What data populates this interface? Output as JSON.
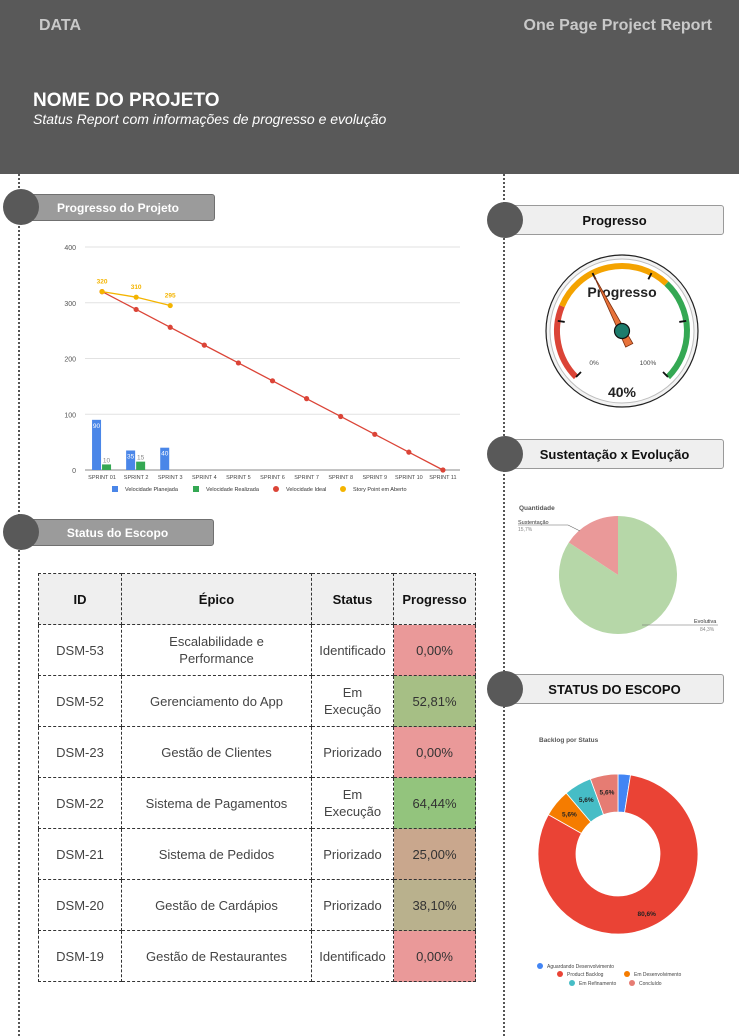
{
  "header": {
    "left_label": "DATA",
    "right_label": "One Page Project Report",
    "title": "NOME DO PROJETO",
    "subtitle": "Status Report com informações de progresso e evolução"
  },
  "sections": {
    "project_progress": "Progresso do Projeto",
    "progress": "Progresso",
    "sustain_vs_evolution": "Sustentação x Evolução",
    "scope_status": "Status do Escopo",
    "scope_status_caps": "STATUS DO ESCOPO"
  },
  "chart_data": [
    {
      "type": "bar",
      "categories": [
        "SPRINT 01",
        "SPRINT 2",
        "SPRINT 3",
        "SPRINT 4",
        "SPRINT 5",
        "SPRINT 6",
        "SPRINT 7",
        "SPRINT 8",
        "SPRINT 9",
        "SPRINT 10",
        "SPRINT 11"
      ],
      "ylim": [
        0,
        400
      ],
      "yticks": [
        0,
        100,
        200,
        300,
        400
      ],
      "grid": true,
      "legend_placement": "bottom",
      "series": [
        {
          "name": "Velocidade Planejada",
          "kind": "bar",
          "color": "#4a86e8",
          "values": [
            90,
            35,
            40,
            null,
            null,
            null,
            null,
            null,
            null,
            null,
            null
          ],
          "labels": [
            "90",
            "35",
            "40"
          ]
        },
        {
          "name": "Velocidade Realizada",
          "kind": "bar",
          "color": "#34a853",
          "values": [
            10,
            15,
            null,
            null,
            null,
            null,
            null,
            null,
            null,
            null,
            null
          ],
          "labels": [
            "10",
            "15"
          ]
        },
        {
          "name": "Velocidade Ideal",
          "kind": "line",
          "color": "#db4437",
          "values": [
            320,
            288,
            256,
            224,
            192,
            160,
            128,
            96,
            64,
            32,
            0
          ]
        },
        {
          "name": "Story Point em Aberto",
          "kind": "line",
          "color": "#f4b400",
          "values": [
            320,
            310,
            295,
            null,
            null,
            null,
            null,
            null,
            null,
            null,
            null
          ],
          "labels": [
            "320",
            "310",
            "295"
          ]
        }
      ]
    },
    {
      "type": "gauge",
      "title": "Progresso",
      "value": 40,
      "value_label": "40%",
      "min_label": "0%",
      "max_label": "100%",
      "bands": [
        {
          "from": 0,
          "to": 25,
          "color": "#db4437"
        },
        {
          "from": 25,
          "to": 66,
          "color": "#f4a300"
        },
        {
          "from": 66,
          "to": 100,
          "color": "#34a853"
        }
      ],
      "needle_color": "#e8733a",
      "hub_color": "#1d7c6c"
    },
    {
      "type": "pie",
      "title": "Quantidade",
      "slices": [
        {
          "label": "Sustentação",
          "value": 15.7,
          "value_label": "15,7%",
          "color": "#ea9999"
        },
        {
          "label": "Evolutiva",
          "value": 84.3,
          "value_label": "84,3%",
          "color": "#b6d7a8"
        }
      ]
    },
    {
      "type": "donut",
      "title": "Backlog por Status",
      "slices": [
        {
          "label": "Aguardando Desenvolvimento",
          "value": 2.5,
          "value_label": "",
          "color": "#4285f4"
        },
        {
          "label": "Product Backlog",
          "value": 80.6,
          "value_label": "80,6%",
          "color": "#ea4335"
        },
        {
          "label": "Em Desenvolvimento",
          "value": 5.6,
          "value_label": "5,6%",
          "color": "#f57c00"
        },
        {
          "label": "Em Refinamento",
          "value": 5.6,
          "value_label": "5,6%",
          "color": "#46bdc6"
        },
        {
          "label": "Concluído",
          "value": 5.6,
          "value_label": "5,6%",
          "color": "#e67c73"
        }
      ]
    }
  ],
  "scope_table": {
    "headers": [
      "ID",
      "Épico",
      "Status",
      "Progresso"
    ],
    "rows": [
      {
        "id": "DSM-53",
        "epic": "Escalabilidade e Performance",
        "status": "Identificado",
        "progress": "0,00%",
        "color": "#ea9999"
      },
      {
        "id": "DSM-52",
        "epic": "Gerenciamento do App",
        "status": "Em Execução",
        "progress": "52,81%",
        "color": "#a6bf85"
      },
      {
        "id": "DSM-23",
        "epic": "Gestão de Clientes",
        "status": "Priorizado",
        "progress": "0,00%",
        "color": "#ea9999"
      },
      {
        "id": "DSM-22",
        "epic": "Sistema de Pagamentos",
        "status": "Em Execução",
        "progress": "64,44%",
        "color": "#93c47d"
      },
      {
        "id": "DSM-21",
        "epic": "Sistema de Pedidos",
        "status": "Priorizado",
        "progress": "25,00%",
        "color": "#c9a78d"
      },
      {
        "id": "DSM-20",
        "epic": "Gestão de Cardápios",
        "status": "Priorizado",
        "progress": "38,10%",
        "color": "#b9b18d"
      },
      {
        "id": "DSM-19",
        "epic": "Gestão de Restaurantes",
        "status": "Identificado",
        "progress": "0,00%",
        "color": "#ea9999"
      }
    ]
  }
}
